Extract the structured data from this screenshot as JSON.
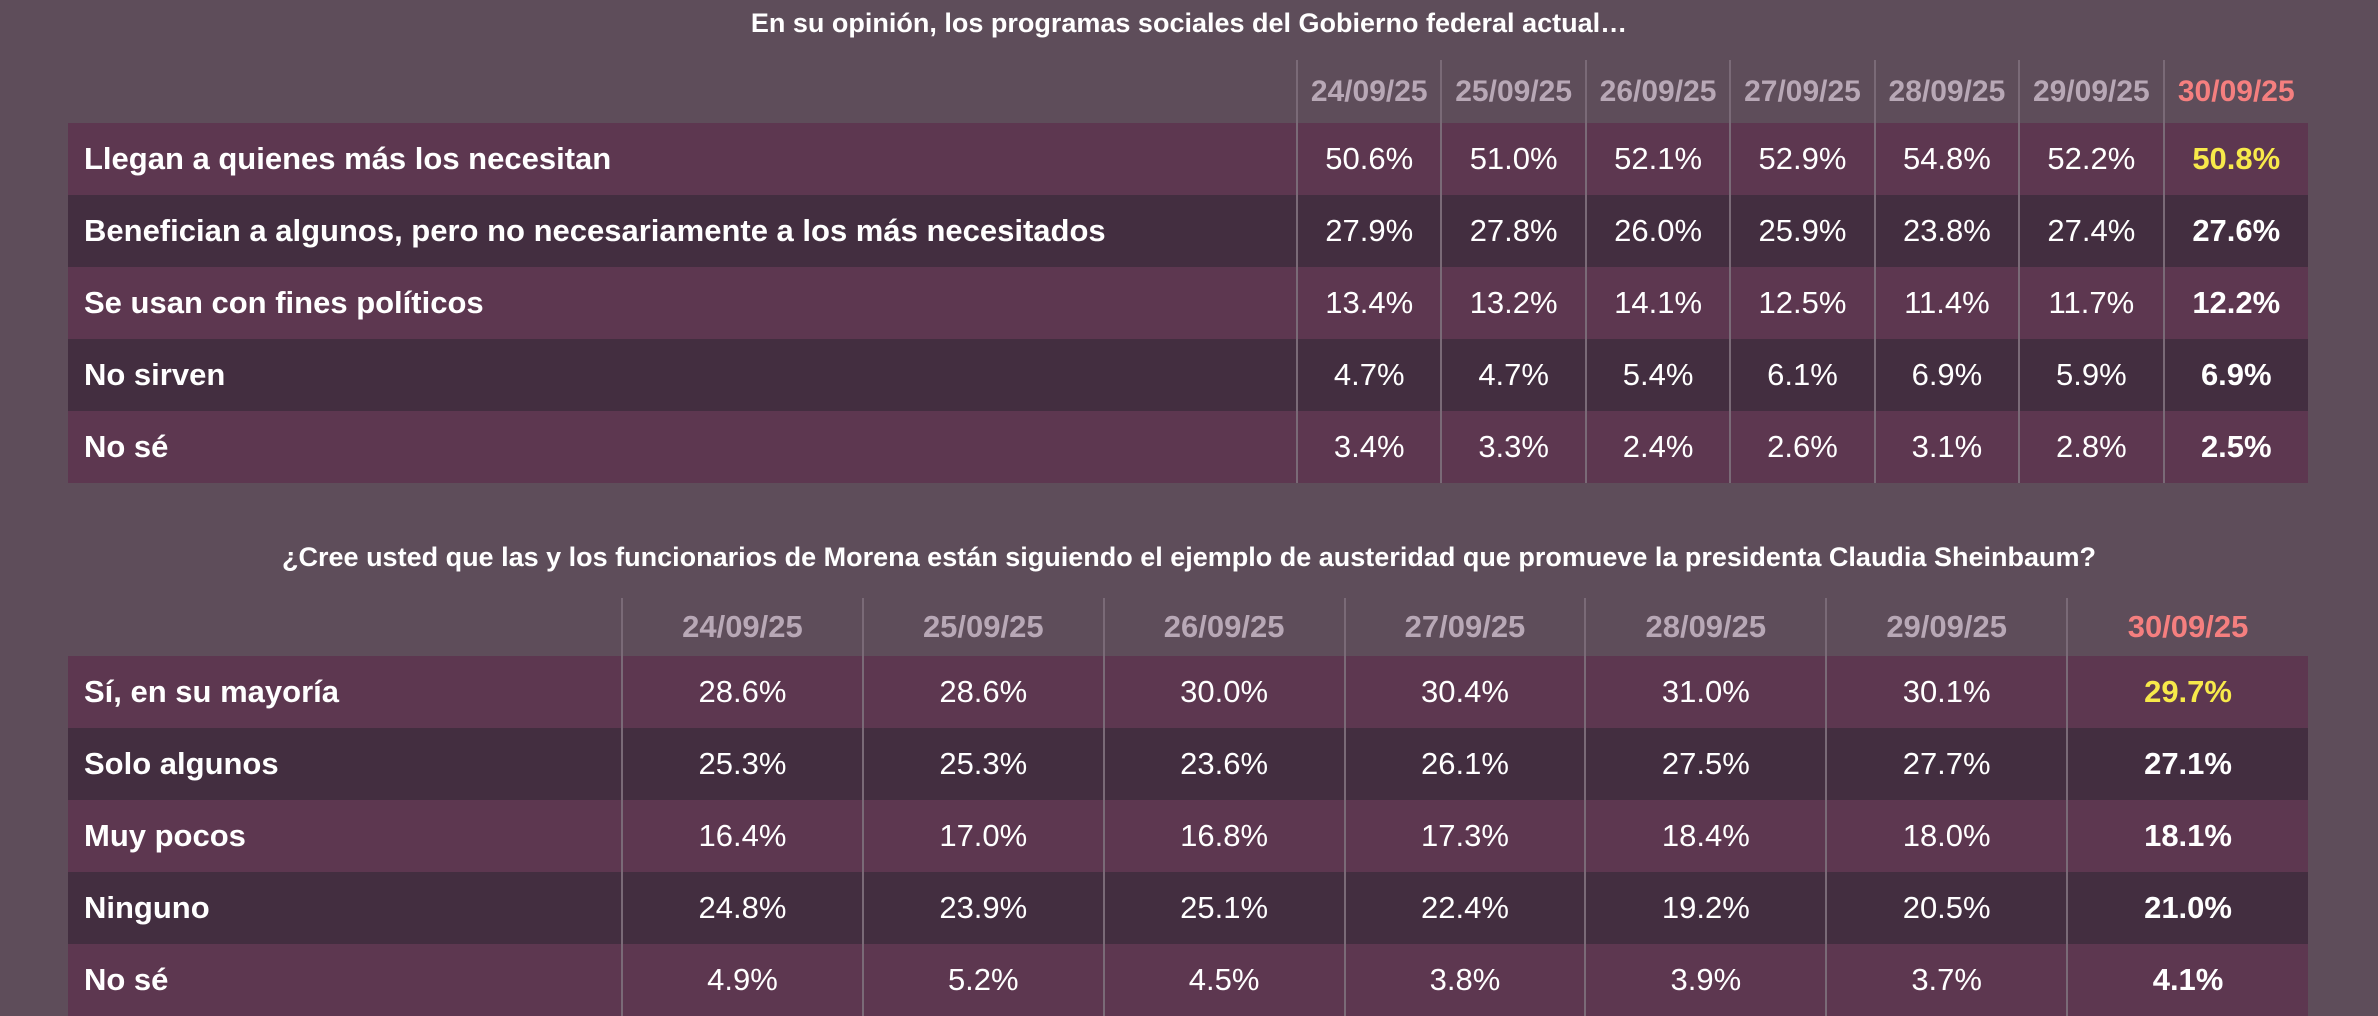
{
  "colors": {
    "background": "#5e4d5a",
    "row_light": "#5d3750",
    "row_dark": "#432e40",
    "latest_date": "#f57f7f",
    "highlight": "#f7e94a"
  },
  "table1": {
    "title": "En su opinión, los programas sociales del Gobierno federal actual…",
    "dates": [
      "24/09/25",
      "25/09/25",
      "26/09/25",
      "27/09/25",
      "28/09/25",
      "29/09/25",
      "30/09/25"
    ],
    "rows": [
      {
        "label": "Llegan a quienes más los necesitan",
        "values": [
          "50.6%",
          "51.0%",
          "52.1%",
          "52.9%",
          "54.8%",
          "52.2%",
          "50.8%"
        ]
      },
      {
        "label": "Benefician a algunos, pero no necesariamente a los más necesitados",
        "values": [
          "27.9%",
          "27.8%",
          "26.0%",
          "25.9%",
          "23.8%",
          "27.4%",
          "27.6%"
        ]
      },
      {
        "label": "Se usan con fines políticos",
        "values": [
          "13.4%",
          "13.2%",
          "14.1%",
          "12.5%",
          "11.4%",
          "11.7%",
          "12.2%"
        ]
      },
      {
        "label": "No sirven",
        "values": [
          "4.7%",
          "4.7%",
          "5.4%",
          "6.1%",
          "6.9%",
          "5.9%",
          "6.9%"
        ]
      },
      {
        "label": "No sé",
        "values": [
          "3.4%",
          "3.3%",
          "2.4%",
          "2.6%",
          "3.1%",
          "2.8%",
          "2.5%"
        ]
      }
    ]
  },
  "table2": {
    "title": "¿Cree usted que las y los funcionarios de Morena están siguiendo el ejemplo de austeridad que promueve la presidenta Claudia Sheinbaum?",
    "dates": [
      "24/09/25",
      "25/09/25",
      "26/09/25",
      "27/09/25",
      "28/09/25",
      "29/09/25",
      "30/09/25"
    ],
    "rows": [
      {
        "label": "Sí, en su mayoría",
        "values": [
          "28.6%",
          "28.6%",
          "30.0%",
          "30.4%",
          "31.0%",
          "30.1%",
          "29.7%"
        ]
      },
      {
        "label": "Solo algunos",
        "values": [
          "25.3%",
          "25.3%",
          "23.6%",
          "26.1%",
          "27.5%",
          "27.7%",
          "27.1%"
        ]
      },
      {
        "label": "Muy pocos",
        "values": [
          "16.4%",
          "17.0%",
          "16.8%",
          "17.3%",
          "18.4%",
          "18.0%",
          "18.1%"
        ]
      },
      {
        "label": "Ninguno",
        "values": [
          "24.8%",
          "23.9%",
          "25.1%",
          "22.4%",
          "19.2%",
          "20.5%",
          "21.0%"
        ]
      },
      {
        "label": "No sé",
        "values": [
          "4.9%",
          "5.2%",
          "4.5%",
          "3.8%",
          "3.9%",
          "3.7%",
          "4.1%"
        ]
      }
    ]
  }
}
